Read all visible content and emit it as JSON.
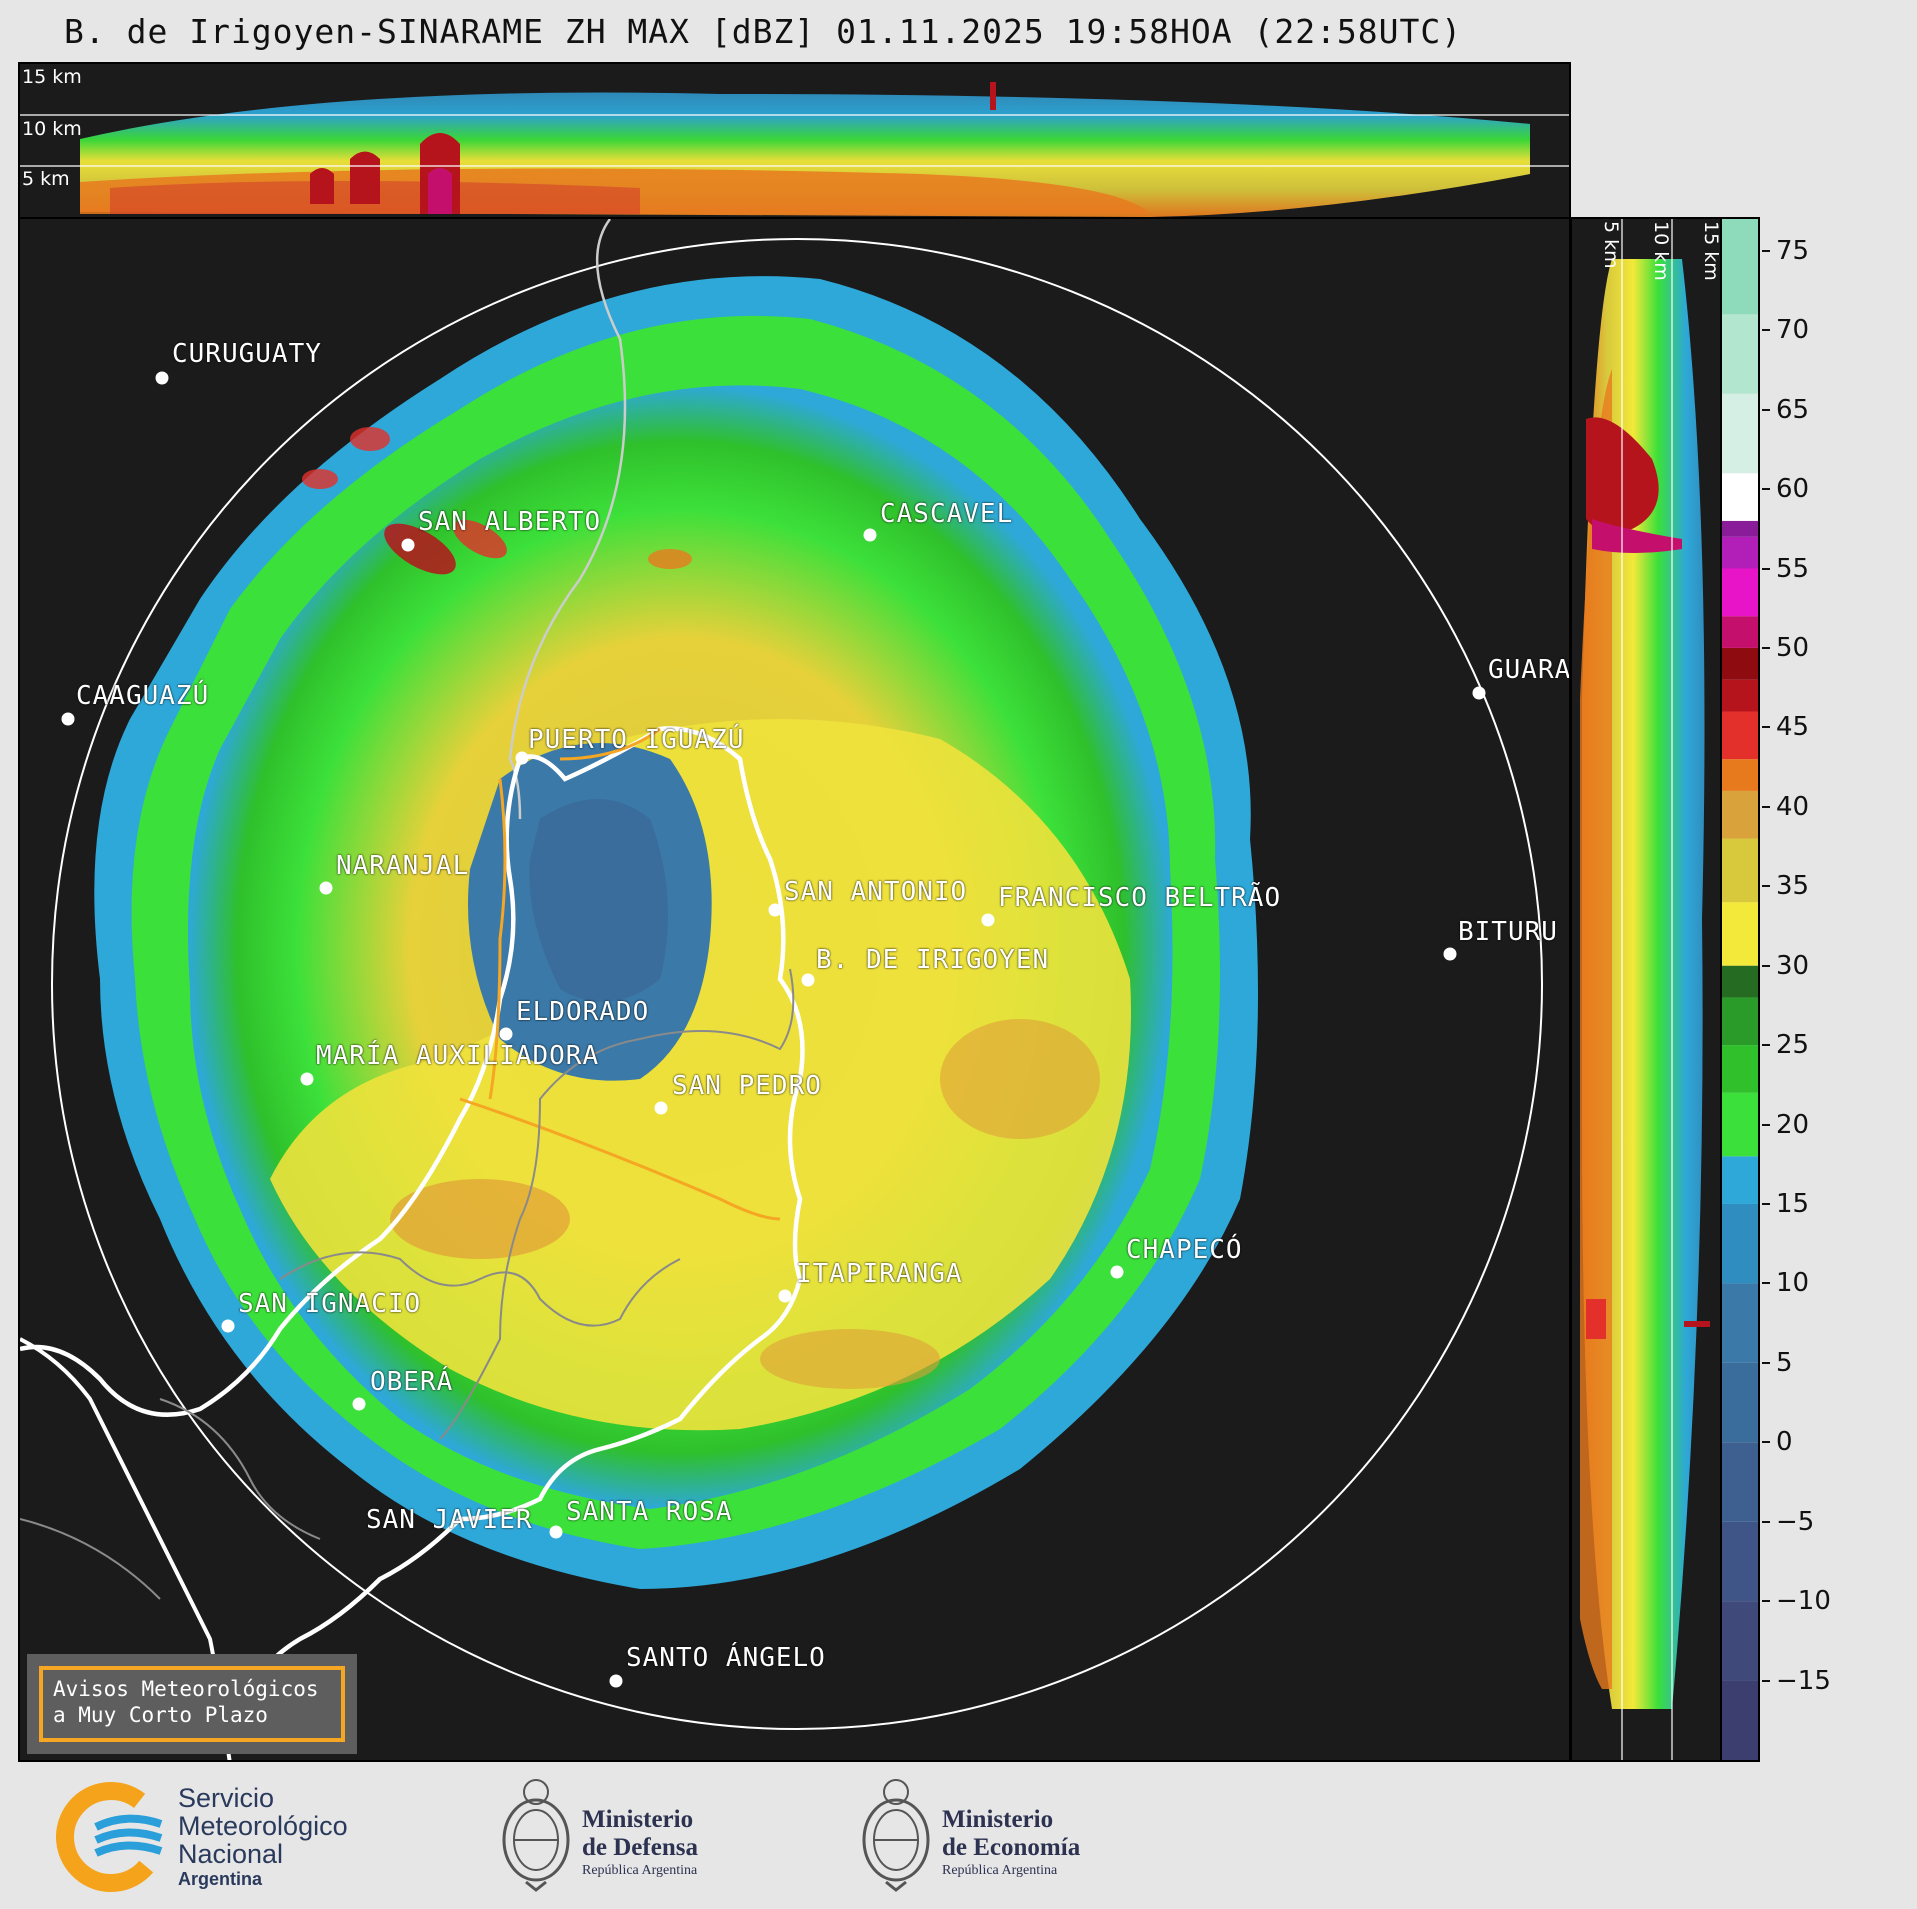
{
  "title": "B. de Irigoyen-SINARAME ZH MAX [dBZ] 01.11.2025 19:58HOA (22:58UTC)",
  "top_cross_section": {
    "labels": [
      "15 km",
      "10 km",
      "5 km"
    ]
  },
  "right_cross_section": {
    "labels": [
      "5 km",
      "10 km",
      "15 km"
    ]
  },
  "colorbar": {
    "ticks": [
      "75",
      "70",
      "65",
      "60",
      "55",
      "50",
      "45",
      "40",
      "35",
      "30",
      "25",
      "20",
      "15",
      "10",
      "5",
      "0",
      "−5",
      "−10",
      "−15"
    ],
    "range": [
      -20,
      77
    ],
    "stops": [
      {
        "min": -20,
        "color": "#3b3e6e"
      },
      {
        "min": -15,
        "color": "#3f4a7a"
      },
      {
        "min": -10,
        "color": "#3f5587"
      },
      {
        "min": -5,
        "color": "#3d6090"
      },
      {
        "min": 0,
        "color": "#3a6d9c"
      },
      {
        "min": 5,
        "color": "#3a79a8"
      },
      {
        "min": 10,
        "color": "#2f8ebf"
      },
      {
        "min": 15,
        "color": "#2ea8d8"
      },
      {
        "min": 18,
        "color": "#3ce03a"
      },
      {
        "min": 22,
        "color": "#2fc02b"
      },
      {
        "min": 25,
        "color": "#2a9a28"
      },
      {
        "min": 28,
        "color": "#256b22"
      },
      {
        "min": 30,
        "color": "#f2e93a"
      },
      {
        "min": 34,
        "color": "#d8c83c"
      },
      {
        "min": 38,
        "color": "#d9a23a"
      },
      {
        "min": 41,
        "color": "#e87a1e"
      },
      {
        "min": 43,
        "color": "#e3302a"
      },
      {
        "min": 46,
        "color": "#b5141c"
      },
      {
        "min": 48,
        "color": "#8e0b10"
      },
      {
        "min": 50,
        "color": "#c4106c"
      },
      {
        "min": 52,
        "color": "#e815c8"
      },
      {
        "min": 55,
        "color": "#b11fb8"
      },
      {
        "min": 57,
        "color": "#8a1c9a"
      },
      {
        "min": 58,
        "color": "#ffffff"
      },
      {
        "min": 61,
        "color": "#d6efe4"
      },
      {
        "min": 66,
        "color": "#b3e6cf"
      },
      {
        "min": 71,
        "color": "#8edbbb"
      }
    ]
  },
  "cities": [
    {
      "name": "CURUGUATY"
    },
    {
      "name": "SAN ALBERTO"
    },
    {
      "name": "CASCAVEL"
    },
    {
      "name": "CAAGUAZÚ"
    },
    {
      "name": "GUARA"
    },
    {
      "name": "PUERTO IGUAZÚ"
    },
    {
      "name": "NARANJAL"
    },
    {
      "name": "SAN ANTONIO"
    },
    {
      "name": "FRANCISCO BELTRÃO"
    },
    {
      "name": "B. DE IRIGOYEN"
    },
    {
      "name": "BITURU"
    },
    {
      "name": "ELDORADO"
    },
    {
      "name": "MARÍA AUXILIADORA"
    },
    {
      "name": "SAN PEDRO"
    },
    {
      "name": "CHAPECÓ"
    },
    {
      "name": "ITAPIRANGA"
    },
    {
      "name": "SAN IGNACIO"
    },
    {
      "name": "OBERÁ"
    },
    {
      "name": "SAN JAVIER"
    },
    {
      "name": "SANTA ROSA"
    },
    {
      "name": "SANTO ÁNGELO"
    }
  ],
  "warning": {
    "line1": "Avisos Meteorológicos",
    "line2": "a Muy Corto Plazo"
  },
  "logos": {
    "smn": {
      "line1": "Servicio",
      "line2": "Meteorológico",
      "line3": "Nacional",
      "line4": "Argentina"
    },
    "defensa": {
      "line1": "Ministerio",
      "line2": "de Defensa",
      "line3": "República Argentina"
    },
    "economia": {
      "line1": "Ministerio",
      "line2": "de Economía",
      "line3": "República Argentina"
    }
  },
  "colors": {
    "background": "#1b1b1b",
    "yellow": "#f2e93a",
    "green": "#3ce03a",
    "blue": "#2ea8d8",
    "orange": "#f5a623"
  }
}
